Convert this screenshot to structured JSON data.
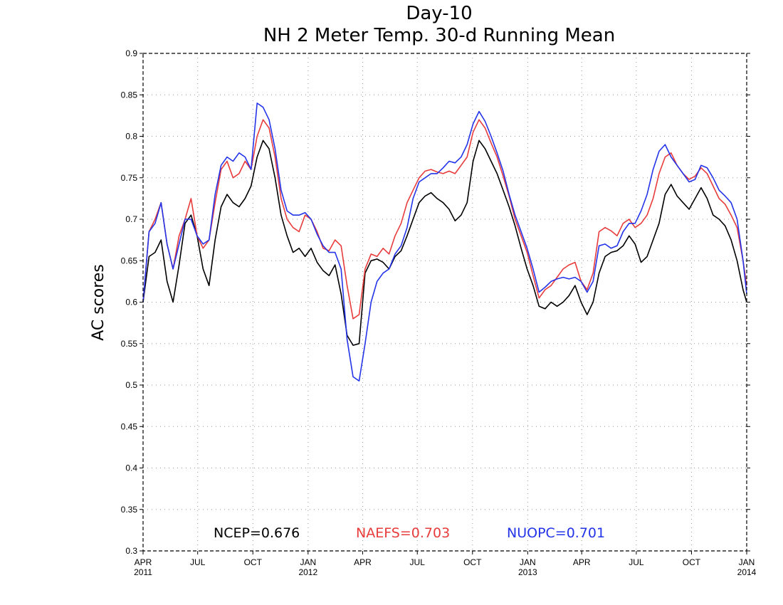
{
  "chart_data": {
    "type": "line",
    "title": "Day-10",
    "subtitle": "NH 2 Meter Temp. 30-d Running Mean",
    "xlabel": "",
    "ylabel": "AC scores",
    "ylim": [
      0.3,
      0.9
    ],
    "xlim": [
      "2011-04-01",
      "2014-01-01"
    ],
    "grid": true,
    "y_ticks": [
      "0.3",
      "0.35",
      "0.4",
      "0.45",
      "0.5",
      "0.55",
      "0.6",
      "0.65",
      "0.7",
      "0.75",
      "0.8",
      "0.85",
      "0.9"
    ],
    "x_ticks": [
      {
        "date": "2011-04-01",
        "label": "APR",
        "year": "2011"
      },
      {
        "date": "2011-07-01",
        "label": "JUL",
        "year": ""
      },
      {
        "date": "2011-10-01",
        "label": "OCT",
        "year": ""
      },
      {
        "date": "2012-01-01",
        "label": "JAN",
        "year": "2012"
      },
      {
        "date": "2012-04-01",
        "label": "APR",
        "year": ""
      },
      {
        "date": "2012-07-01",
        "label": "JUL",
        "year": ""
      },
      {
        "date": "2012-10-01",
        "label": "OCT",
        "year": ""
      },
      {
        "date": "2013-01-01",
        "label": "JAN",
        "year": "2013"
      },
      {
        "date": "2013-04-01",
        "label": "APR",
        "year": ""
      },
      {
        "date": "2013-07-01",
        "label": "JUL",
        "year": ""
      },
      {
        "date": "2013-10-01",
        "label": "OCT",
        "year": ""
      },
      {
        "date": "2014-01-01",
        "label": "JAN",
        "year": "2014"
      }
    ],
    "legend": [
      {
        "text": "NCEP=0.676",
        "color": "#000000"
      },
      {
        "text": "NAEFS=0.703",
        "color": "#e83c3c"
      },
      {
        "text": "NUOPC=0.701",
        "color": "#2434e8"
      }
    ],
    "series": [
      {
        "color": "#000000",
        "x": [
          "2011-04-01",
          "2011-04-11",
          "2011-04-21",
          "2011-05-01",
          "2011-05-11",
          "2011-05-21",
          "2011-05-31",
          "2011-06-10",
          "2011-06-20",
          "2011-06-30",
          "2011-07-10",
          "2011-07-20",
          "2011-07-30",
          "2011-08-09",
          "2011-08-19",
          "2011-08-29",
          "2011-09-08",
          "2011-09-18",
          "2011-09-28",
          "2011-10-08",
          "2011-10-18",
          "2011-10-28",
          "2011-11-07",
          "2011-11-17",
          "2011-11-27",
          "2011-12-07",
          "2011-12-17",
          "2011-12-27",
          "2012-01-06",
          "2012-01-16",
          "2012-01-26",
          "2012-02-05",
          "2012-02-15",
          "2012-02-25",
          "2012-03-06",
          "2012-03-16",
          "2012-03-26",
          "2012-04-05",
          "2012-04-15",
          "2012-04-25",
          "2012-05-05",
          "2012-05-15",
          "2012-05-25",
          "2012-06-04",
          "2012-06-14",
          "2012-06-24",
          "2012-07-04",
          "2012-07-14",
          "2012-07-24",
          "2012-08-03",
          "2012-08-13",
          "2012-08-23",
          "2012-09-02",
          "2012-09-12",
          "2012-09-22",
          "2012-10-02",
          "2012-10-12",
          "2012-10-22",
          "2012-11-01",
          "2012-11-11",
          "2012-11-21",
          "2012-12-01",
          "2012-12-11",
          "2012-12-21",
          "2012-12-31",
          "2013-01-10",
          "2013-01-20",
          "2013-01-30",
          "2013-02-09",
          "2013-02-19",
          "2013-03-01",
          "2013-03-11",
          "2013-03-21",
          "2013-03-31",
          "2013-04-10",
          "2013-04-20",
          "2013-04-30",
          "2013-05-10",
          "2013-05-20",
          "2013-05-30",
          "2013-06-09",
          "2013-06-19",
          "2013-06-29",
          "2013-07-09",
          "2013-07-19",
          "2013-07-29",
          "2013-08-08",
          "2013-08-18",
          "2013-08-28",
          "2013-09-07",
          "2013-09-17",
          "2013-09-27",
          "2013-10-07",
          "2013-10-17",
          "2013-10-27",
          "2013-11-06",
          "2013-11-16",
          "2013-11-26",
          "2013-12-06",
          "2013-12-16",
          "2013-12-26",
          "2014-01-01"
        ],
        "y": [
          0.6,
          0.655,
          0.66,
          0.675,
          0.625,
          0.6,
          0.645,
          0.695,
          0.705,
          0.68,
          0.64,
          0.62,
          0.675,
          0.715,
          0.73,
          0.72,
          0.715,
          0.725,
          0.74,
          0.775,
          0.795,
          0.785,
          0.75,
          0.705,
          0.68,
          0.66,
          0.665,
          0.655,
          0.665,
          0.648,
          0.638,
          0.632,
          0.645,
          0.61,
          0.56,
          0.548,
          0.55,
          0.635,
          0.65,
          0.652,
          0.648,
          0.64,
          0.655,
          0.662,
          0.68,
          0.7,
          0.72,
          0.728,
          0.732,
          0.725,
          0.72,
          0.712,
          0.698,
          0.705,
          0.72,
          0.77,
          0.795,
          0.785,
          0.77,
          0.755,
          0.735,
          0.715,
          0.692,
          0.665,
          0.64,
          0.62,
          0.595,
          0.592,
          0.6,
          0.595,
          0.6,
          0.608,
          0.62,
          0.6,
          0.585,
          0.6,
          0.635,
          0.655,
          0.66,
          0.662,
          0.668,
          0.68,
          0.67,
          0.648,
          0.655,
          0.675,
          0.695,
          0.73,
          0.742,
          0.728,
          0.72,
          0.712,
          0.725,
          0.738,
          0.725,
          0.705,
          0.7,
          0.692,
          0.675,
          0.65,
          0.615,
          0.6
        ]
      },
      {
        "color": "#e83c3c",
        "x": [
          "2011-04-01",
          "2011-04-11",
          "2011-04-21",
          "2011-05-01",
          "2011-05-11",
          "2011-05-21",
          "2011-05-31",
          "2011-06-10",
          "2011-06-20",
          "2011-06-30",
          "2011-07-10",
          "2011-07-20",
          "2011-07-30",
          "2011-08-09",
          "2011-08-19",
          "2011-08-29",
          "2011-09-08",
          "2011-09-18",
          "2011-09-28",
          "2011-10-08",
          "2011-10-18",
          "2011-10-28",
          "2011-11-07",
          "2011-11-17",
          "2011-11-27",
          "2011-12-07",
          "2011-12-17",
          "2011-12-27",
          "2012-01-06",
          "2012-01-16",
          "2012-01-26",
          "2012-02-05",
          "2012-02-15",
          "2012-02-25",
          "2012-03-06",
          "2012-03-16",
          "2012-03-26",
          "2012-04-05",
          "2012-04-15",
          "2012-04-25",
          "2012-05-05",
          "2012-05-15",
          "2012-05-25",
          "2012-06-04",
          "2012-06-14",
          "2012-06-24",
          "2012-07-04",
          "2012-07-14",
          "2012-07-24",
          "2012-08-03",
          "2012-08-13",
          "2012-08-23",
          "2012-09-02",
          "2012-09-12",
          "2012-09-22",
          "2012-10-02",
          "2012-10-12",
          "2012-10-22",
          "2012-11-01",
          "2012-11-11",
          "2012-11-21",
          "2012-12-01",
          "2012-12-11",
          "2012-12-21",
          "2012-12-31",
          "2013-01-10",
          "2013-01-20",
          "2013-01-30",
          "2013-02-09",
          "2013-02-19",
          "2013-03-01",
          "2013-03-11",
          "2013-03-21",
          "2013-03-31",
          "2013-04-10",
          "2013-04-20",
          "2013-04-30",
          "2013-05-10",
          "2013-05-20",
          "2013-05-30",
          "2013-06-09",
          "2013-06-19",
          "2013-06-29",
          "2013-07-09",
          "2013-07-19",
          "2013-07-29",
          "2013-08-08",
          "2013-08-18",
          "2013-08-28",
          "2013-09-07",
          "2013-09-17",
          "2013-09-27",
          "2013-10-07",
          "2013-10-17",
          "2013-10-27",
          "2013-11-06",
          "2013-11-16",
          "2013-11-26",
          "2013-12-06",
          "2013-12-16",
          "2013-12-26",
          "2014-01-01"
        ],
        "y": [
          0.6,
          0.685,
          0.7,
          0.72,
          0.67,
          0.64,
          0.68,
          0.7,
          0.725,
          0.68,
          0.665,
          0.675,
          0.72,
          0.76,
          0.77,
          0.75,
          0.755,
          0.77,
          0.76,
          0.8,
          0.82,
          0.81,
          0.775,
          0.725,
          0.7,
          0.69,
          0.685,
          0.705,
          0.7,
          0.685,
          0.665,
          0.662,
          0.675,
          0.668,
          0.62,
          0.58,
          0.585,
          0.64,
          0.658,
          0.655,
          0.665,
          0.658,
          0.68,
          0.695,
          0.72,
          0.735,
          0.75,
          0.758,
          0.76,
          0.757,
          0.755,
          0.758,
          0.755,
          0.765,
          0.775,
          0.805,
          0.82,
          0.81,
          0.792,
          0.775,
          0.752,
          0.728,
          0.7,
          0.68,
          0.66,
          0.632,
          0.605,
          0.615,
          0.62,
          0.63,
          0.64,
          0.645,
          0.648,
          0.625,
          0.615,
          0.635,
          0.685,
          0.69,
          0.686,
          0.68,
          0.695,
          0.7,
          0.69,
          0.695,
          0.705,
          0.725,
          0.755,
          0.775,
          0.78,
          0.765,
          0.755,
          0.748,
          0.752,
          0.762,
          0.755,
          0.74,
          0.725,
          0.718,
          0.705,
          0.69,
          0.65,
          0.62
        ]
      },
      {
        "color": "#2434e8",
        "x": [
          "2011-04-01",
          "2011-04-11",
          "2011-04-21",
          "2011-05-01",
          "2011-05-11",
          "2011-05-21",
          "2011-05-31",
          "2011-06-10",
          "2011-06-20",
          "2011-06-30",
          "2011-07-10",
          "2011-07-20",
          "2011-07-30",
          "2011-08-09",
          "2011-08-19",
          "2011-08-29",
          "2011-09-08",
          "2011-09-18",
          "2011-09-28",
          "2011-10-08",
          "2011-10-18",
          "2011-10-28",
          "2011-11-07",
          "2011-11-17",
          "2011-11-27",
          "2011-12-07",
          "2011-12-17",
          "2011-12-27",
          "2012-01-06",
          "2012-01-16",
          "2012-01-26",
          "2012-02-05",
          "2012-02-15",
          "2012-02-25",
          "2012-03-06",
          "2012-03-16",
          "2012-03-26",
          "2012-04-05",
          "2012-04-15",
          "2012-04-25",
          "2012-05-05",
          "2012-05-15",
          "2012-05-25",
          "2012-06-04",
          "2012-06-14",
          "2012-06-24",
          "2012-07-04",
          "2012-07-14",
          "2012-07-24",
          "2012-08-03",
          "2012-08-13",
          "2012-08-23",
          "2012-09-02",
          "2012-09-12",
          "2012-09-22",
          "2012-10-02",
          "2012-10-12",
          "2012-10-22",
          "2012-11-01",
          "2012-11-11",
          "2012-11-21",
          "2012-12-01",
          "2012-12-11",
          "2012-12-21",
          "2012-12-31",
          "2013-01-10",
          "2013-01-20",
          "2013-01-30",
          "2013-02-09",
          "2013-02-19",
          "2013-03-01",
          "2013-03-11",
          "2013-03-21",
          "2013-03-31",
          "2013-04-10",
          "2013-04-20",
          "2013-04-30",
          "2013-05-10",
          "2013-05-20",
          "2013-05-30",
          "2013-06-09",
          "2013-06-19",
          "2013-06-29",
          "2013-07-09",
          "2013-07-19",
          "2013-07-29",
          "2013-08-08",
          "2013-08-18",
          "2013-08-28",
          "2013-09-07",
          "2013-09-17",
          "2013-09-27",
          "2013-10-07",
          "2013-10-17",
          "2013-10-27",
          "2013-11-06",
          "2013-11-16",
          "2013-11-26",
          "2013-12-06",
          "2013-12-16",
          "2013-12-26",
          "2014-01-01"
        ],
        "y": [
          0.6,
          0.685,
          0.695,
          0.72,
          0.67,
          0.64,
          0.67,
          0.7,
          0.7,
          0.68,
          0.67,
          0.675,
          0.73,
          0.765,
          0.775,
          0.77,
          0.78,
          0.775,
          0.76,
          0.84,
          0.835,
          0.82,
          0.785,
          0.735,
          0.71,
          0.705,
          0.705,
          0.708,
          0.7,
          0.682,
          0.668,
          0.66,
          0.66,
          0.64,
          0.555,
          0.51,
          0.505,
          0.55,
          0.6,
          0.625,
          0.635,
          0.64,
          0.658,
          0.668,
          0.69,
          0.725,
          0.745,
          0.75,
          0.755,
          0.755,
          0.762,
          0.77,
          0.768,
          0.775,
          0.79,
          0.815,
          0.83,
          0.818,
          0.8,
          0.78,
          0.758,
          0.73,
          0.705,
          0.685,
          0.665,
          0.64,
          0.612,
          0.618,
          0.625,
          0.628,
          0.63,
          0.628,
          0.63,
          0.625,
          0.612,
          0.625,
          0.668,
          0.67,
          0.665,
          0.668,
          0.685,
          0.695,
          0.695,
          0.71,
          0.73,
          0.76,
          0.782,
          0.79,
          0.775,
          0.765,
          0.755,
          0.745,
          0.748,
          0.765,
          0.762,
          0.75,
          0.735,
          0.728,
          0.72,
          0.7,
          0.65,
          0.61
        ]
      }
    ]
  }
}
